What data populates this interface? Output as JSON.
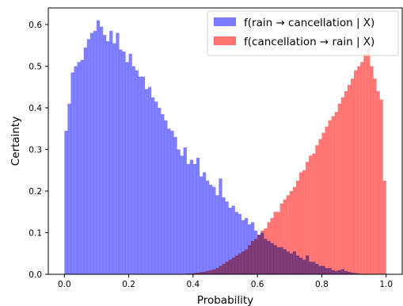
{
  "chart_data": {
    "type": "bar",
    "title": "",
    "xlabel": "Probability",
    "ylabel": "Certainty",
    "xlim": [
      -0.05,
      1.05
    ],
    "ylim": [
      0.0,
      0.64
    ],
    "xticks": [
      0.0,
      0.2,
      0.4,
      0.6,
      0.8,
      1.0
    ],
    "xtick_labels": [
      "0.0",
      "0.2",
      "0.4",
      "0.6",
      "0.8",
      "1.0"
    ],
    "yticks": [
      0.0,
      0.1,
      0.2,
      0.3,
      0.4,
      0.5,
      0.6
    ],
    "ytick_labels": [
      "0.0",
      "0.1",
      "0.2",
      "0.3",
      "0.4",
      "0.5",
      "0.6"
    ],
    "grid": false,
    "legend_position": "top-right",
    "bin_start": 0.0,
    "bin_width": 0.01,
    "series": [
      {
        "name": "f(rain → cancellation | X)",
        "color": "#7b7bff",
        "values": [
          0.345,
          0.41,
          0.485,
          0.5,
          0.51,
          0.515,
          0.545,
          0.565,
          0.58,
          0.585,
          0.61,
          0.595,
          0.575,
          0.56,
          0.585,
          0.555,
          0.58,
          0.54,
          0.535,
          0.51,
          0.53,
          0.5,
          0.49,
          0.475,
          0.475,
          0.445,
          0.45,
          0.425,
          0.415,
          0.4,
          0.385,
          0.37,
          0.35,
          0.345,
          0.33,
          0.3,
          0.285,
          0.305,
          0.265,
          0.275,
          0.265,
          0.28,
          0.235,
          0.245,
          0.225,
          0.215,
          0.21,
          0.19,
          0.23,
          0.185,
          0.175,
          0.16,
          0.165,
          0.15,
          0.145,
          0.13,
          0.135,
          0.12,
          0.125,
          0.105,
          0.095,
          0.1,
          0.085,
          0.08,
          0.075,
          0.07,
          0.065,
          0.065,
          0.06,
          0.055,
          0.05,
          0.055,
          0.045,
          0.04,
          0.035,
          0.045,
          0.03,
          0.03,
          0.025,
          0.02,
          0.02,
          0.015,
          0.015,
          0.01,
          0.008,
          0.01,
          0.012,
          0.008,
          0.006,
          0.004,
          0.003,
          0.002,
          0.001,
          0.001,
          0.001,
          0.001,
          0.0,
          0.0,
          0.0,
          0.0
        ]
      },
      {
        "name": "f(cancellation → rain | X)",
        "color": "#ff7373",
        "values": [
          0.0,
          0.0,
          0.0,
          0.0,
          0.0,
          0.0,
          0.0,
          0.0,
          0.0,
          0.0,
          0.0,
          0.0,
          0.0,
          0.0,
          0.0,
          0.0,
          0.0,
          0.0,
          0.0,
          0.0,
          0.0,
          0.0,
          0.0,
          0.0,
          0.0,
          0.0,
          0.0,
          0.0,
          0.0,
          0.0,
          0.0,
          0.0,
          0.0,
          0.0,
          0.0,
          0.0,
          0.001,
          0.001,
          0.002,
          0.002,
          0.003,
          0.004,
          0.005,
          0.006,
          0.008,
          0.01,
          0.012,
          0.015,
          0.02,
          0.025,
          0.03,
          0.035,
          0.04,
          0.045,
          0.05,
          0.055,
          0.06,
          0.07,
          0.08,
          0.085,
          0.095,
          0.105,
          0.11,
          0.125,
          0.135,
          0.15,
          0.15,
          0.17,
          0.18,
          0.19,
          0.2,
          0.21,
          0.225,
          0.245,
          0.25,
          0.27,
          0.285,
          0.29,
          0.31,
          0.325,
          0.34,
          0.355,
          0.37,
          0.38,
          0.39,
          0.41,
          0.425,
          0.44,
          0.455,
          0.47,
          0.49,
          0.5,
          0.51,
          0.53,
          0.545,
          0.5,
          0.47,
          0.44,
          0.42,
          0.225
        ]
      }
    ]
  }
}
